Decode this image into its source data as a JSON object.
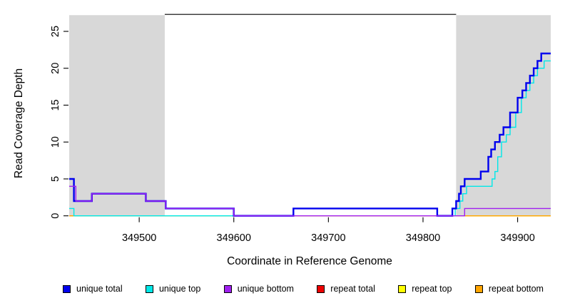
{
  "figure": {
    "background_color": "#FFFFFF"
  },
  "chart_data": {
    "type": "line",
    "subtype": "step-coverage-plot",
    "title": "",
    "xlabel": "Coordinate in Reference Genome",
    "ylabel": "Read Coverage Depth",
    "xlim": [
      349426,
      349935
    ],
    "ylim": [
      0,
      27.5
    ],
    "x_ticks": [
      349500,
      349600,
      349700,
      349800,
      349900
    ],
    "y_ticks": [
      0,
      5,
      10,
      15,
      20,
      25
    ],
    "grid": false,
    "legend_position": "bottom",
    "axis_color": "#000000",
    "shaded_regions": [
      {
        "name": "left-repeat-region",
        "x0": 349426,
        "x1": 349527,
        "y0": 0,
        "y1": 27.2,
        "color": "#D8D8D8"
      },
      {
        "name": "right-repeat-region",
        "x0": 349835,
        "x1": 349935,
        "y0": 0,
        "y1": 27.2,
        "color": "#D8D8D8"
      }
    ],
    "annotations": [
      {
        "name": "unique-span-segment",
        "type": "hline-segment",
        "x0": 349527,
        "x1": 349835,
        "y": 27.3,
        "color": "#000000",
        "width": 1.2
      }
    ],
    "series": [
      {
        "name": "repeat total",
        "color": "#EE0000",
        "width": 1.3,
        "steps": [
          [
            349426,
            0
          ]
        ]
      },
      {
        "name": "repeat top",
        "color": "#FFFF00",
        "width": 1.3,
        "steps": [
          [
            349426,
            0
          ]
        ]
      },
      {
        "name": "repeat bottom",
        "color": "#FFA500",
        "width": 1.4,
        "steps": [
          [
            349426,
            0
          ]
        ]
      },
      {
        "name": "unique top",
        "color": "#00E8E8",
        "width": 1.4,
        "steps": [
          [
            349426,
            1
          ],
          [
            349431,
            0
          ],
          [
            349663,
            1
          ],
          [
            349815,
            0
          ],
          [
            349834,
            1
          ],
          [
            349839,
            2
          ],
          [
            349842,
            3
          ],
          [
            349846,
            4
          ],
          [
            349873,
            5
          ],
          [
            349876,
            6
          ],
          [
            349879,
            8
          ],
          [
            349883,
            10
          ],
          [
            349888,
            11
          ],
          [
            349892,
            12
          ],
          [
            349898,
            14
          ],
          [
            349904,
            16
          ],
          [
            349909,
            17
          ],
          [
            349913,
            18
          ],
          [
            349917,
            19
          ],
          [
            349921,
            20
          ],
          [
            349928,
            21
          ]
        ]
      },
      {
        "name": "unique total",
        "color": "#0000EE",
        "width": 2.4,
        "steps": [
          [
            349426,
            5
          ],
          [
            349431,
            2
          ],
          [
            349450,
            3
          ],
          [
            349507,
            2
          ],
          [
            349528,
            1
          ],
          [
            349600,
            0
          ],
          [
            349663,
            1
          ],
          [
            349815,
            0
          ],
          [
            349831,
            1
          ],
          [
            349835,
            2
          ],
          [
            349838,
            3
          ],
          [
            349840,
            4
          ],
          [
            349844,
            5
          ],
          [
            349861,
            6
          ],
          [
            349869,
            8
          ],
          [
            349872,
            9
          ],
          [
            349876,
            10
          ],
          [
            349881,
            11
          ],
          [
            349885,
            12
          ],
          [
            349892,
            14
          ],
          [
            349900,
            16
          ],
          [
            349905,
            17
          ],
          [
            349909,
            18
          ],
          [
            349913,
            19
          ],
          [
            349917,
            20
          ],
          [
            349921,
            21
          ],
          [
            349925,
            22
          ]
        ]
      },
      {
        "name": "unique bottom",
        "color": "#A020F0",
        "width": 1.4,
        "steps": [
          [
            349426,
            4
          ],
          [
            349433,
            2
          ],
          [
            349450,
            3
          ],
          [
            349507,
            2
          ],
          [
            349528,
            1
          ],
          [
            349600,
            0
          ],
          [
            349844,
            1
          ]
        ]
      }
    ],
    "legend": [
      {
        "label": "unique total",
        "color": "#0000EE"
      },
      {
        "label": "unique top",
        "color": "#00E8E8"
      },
      {
        "label": "unique bottom",
        "color": "#A020F0"
      },
      {
        "label": "repeat total",
        "color": "#EE0000"
      },
      {
        "label": "repeat top",
        "color": "#FFFF00"
      },
      {
        "label": "repeat bottom",
        "color": "#FFA500"
      }
    ]
  }
}
